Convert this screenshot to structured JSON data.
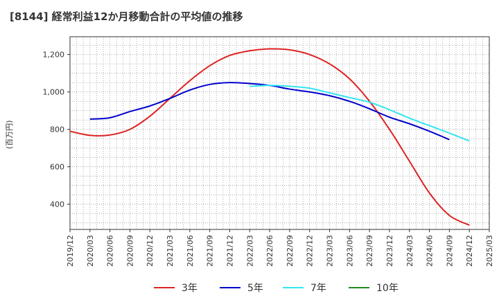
{
  "title": "[8144]  経常利益12か月移動合計の平均値の推移",
  "chart_data": {
    "type": "line",
    "ylabel": "(百万円)",
    "xlabel": "",
    "ylim": [
      265,
      1295
    ],
    "yticks": [
      400,
      600,
      800,
      1000,
      1200
    ],
    "ytick_labels": [
      "400",
      "600",
      "800",
      "1,000",
      "1,200"
    ],
    "x_categories": [
      "2019/12",
      "2020/03",
      "2020/06",
      "2020/09",
      "2020/12",
      "2021/03",
      "2021/06",
      "2021/09",
      "2021/12",
      "2022/03",
      "2022/06",
      "2022/09",
      "2022/12",
      "2023/03",
      "2023/06",
      "2023/09",
      "2023/12",
      "2024/03",
      "2024/06",
      "2024/09",
      "2024/12",
      "2025/03"
    ],
    "grid": true,
    "series": [
      {
        "name": "3年",
        "color": "#dd2222",
        "start_index": 0,
        "values": [
          790,
          768,
          770,
          800,
          870,
          965,
          1060,
          1140,
          1195,
          1220,
          1230,
          1225,
          1200,
          1150,
          1070,
          950,
          800,
          630,
          460,
          340,
          288
        ]
      },
      {
        "name": "5年",
        "color": "#0000cc",
        "start_index": 1,
        "values": [
          855,
          862,
          895,
          925,
          965,
          1010,
          1040,
          1050,
          1045,
          1035,
          1015,
          1000,
          980,
          950,
          910,
          865,
          830,
          790,
          745
        ]
      },
      {
        "name": "7年",
        "color": "#33e5f0",
        "start_index": 9,
        "values": [
          1030,
          1035,
          1030,
          1020,
          995,
          970,
          945,
          905,
          860,
          820,
          780,
          738
        ]
      },
      {
        "name": "10年",
        "color": "#228822",
        "start_index": 0,
        "values": []
      }
    ]
  }
}
